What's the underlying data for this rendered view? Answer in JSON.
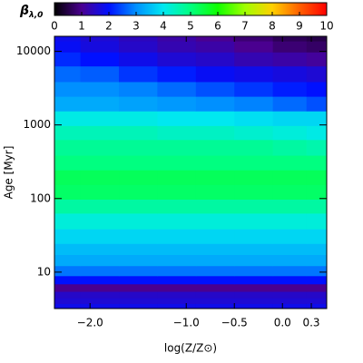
{
  "chart_data": {
    "type": "heatmap",
    "colorbar_label": "β",
    "colorbar_label_sub": "λ,0",
    "x_label": "log(Z/Z⊙)",
    "y_label": "Age [Myr]",
    "x": [
      -2.3,
      -1.9,
      -1.5,
      -1.1,
      -0.7,
      -0.3,
      0.1,
      0.4
    ],
    "y": [
      3.5,
      4,
      5,
      6,
      8,
      10,
      15,
      20,
      30,
      50,
      80,
      120,
      200,
      300,
      500,
      800,
      1200,
      2000,
      3000,
      5000,
      8000,
      12000,
      16000
    ],
    "z": [
      [
        1.8,
        1.8,
        1.8,
        1.8,
        1.8,
        1.8,
        1.8,
        1.8
      ],
      [
        1.6,
        1.6,
        1.6,
        1.6,
        1.6,
        1.6,
        1.6,
        1.6
      ],
      [
        1.5,
        1.5,
        1.5,
        1.5,
        1.5,
        1.5,
        1.5,
        1.5
      ],
      [
        1.0,
        1.0,
        1.0,
        1.0,
        1.0,
        1.0,
        1.0,
        1.0
      ],
      [
        2.0,
        2.0,
        2.0,
        2.0,
        2.0,
        2.0,
        2.0,
        2.0
      ],
      [
        2.8,
        2.8,
        2.8,
        2.8,
        2.8,
        2.8,
        2.8,
        2.8
      ],
      [
        3.3,
        3.3,
        3.3,
        3.3,
        3.3,
        3.3,
        3.3,
        3.3
      ],
      [
        3.5,
        3.5,
        3.5,
        3.5,
        3.5,
        3.5,
        3.5,
        3.5
      ],
      [
        3.8,
        3.8,
        3.8,
        3.8,
        3.8,
        3.8,
        3.8,
        3.8
      ],
      [
        4.2,
        4.2,
        4.2,
        4.2,
        4.2,
        4.2,
        4.2,
        4.2
      ],
      [
        4.7,
        4.7,
        4.7,
        4.7,
        4.7,
        4.7,
        4.7,
        4.7
      ],
      [
        5.2,
        5.2,
        5.2,
        5.2,
        5.2,
        5.2,
        5.2,
        5.2
      ],
      [
        5.3,
        5.3,
        5.3,
        5.3,
        5.3,
        5.3,
        5.3,
        5.3
      ],
      [
        5.0,
        5.0,
        5.0,
        5.0,
        5.0,
        5.0,
        5.0,
        5.0
      ],
      [
        4.8,
        4.8,
        4.8,
        4.8,
        4.8,
        4.8,
        4.7,
        4.6
      ],
      [
        4.5,
        4.5,
        4.5,
        4.4,
        4.4,
        4.3,
        4.2,
        4.1
      ],
      [
        4.1,
        4.1,
        4.1,
        4.0,
        4.0,
        3.9,
        3.8,
        3.8
      ],
      [
        3.3,
        3.3,
        3.2,
        3.1,
        3.0,
        2.9,
        2.7,
        2.5
      ],
      [
        3.0,
        3.0,
        2.9,
        2.7,
        2.5,
        2.3,
        2.1,
        2.0
      ],
      [
        2.7,
        2.6,
        2.3,
        2.1,
        1.9,
        1.8,
        1.7,
        1.6
      ],
      [
        2.2,
        2.0,
        1.8,
        1.6,
        1.5,
        1.3,
        1.2,
        1.1
      ],
      [
        1.9,
        1.7,
        1.5,
        1.3,
        1.2,
        1.0,
        0.8,
        0.7
      ],
      [
        1.8,
        1.6,
        1.4,
        1.2,
        1.0,
        0.8,
        0.6,
        0.5
      ]
    ],
    "xlim": [
      -2.37,
      0.46
    ],
    "ylim": [
      3.2,
      16000
    ],
    "y_log": true,
    "xticks": [
      {
        "value": -2,
        "label": "−2.0"
      },
      {
        "value": -1,
        "label": "−1.0"
      },
      {
        "value": -0.5,
        "label": "−0.5"
      },
      {
        "value": 0,
        "label": "0.0"
      },
      0.3
    ],
    "yticks": [
      10,
      100,
      1000,
      10000
    ],
    "clim": [
      0,
      10
    ],
    "cticks": [
      0,
      1,
      2,
      3,
      4,
      5,
      6,
      7,
      8,
      9,
      10
    ],
    "colormap": [
      "#000000",
      "#4a0090",
      "#0010ff",
      "#0090ff",
      "#00e8f0",
      "#00ff80",
      "#10ff00",
      "#a0ff00",
      "#ffd000",
      "#ff6000",
      "#ff0000"
    ]
  }
}
